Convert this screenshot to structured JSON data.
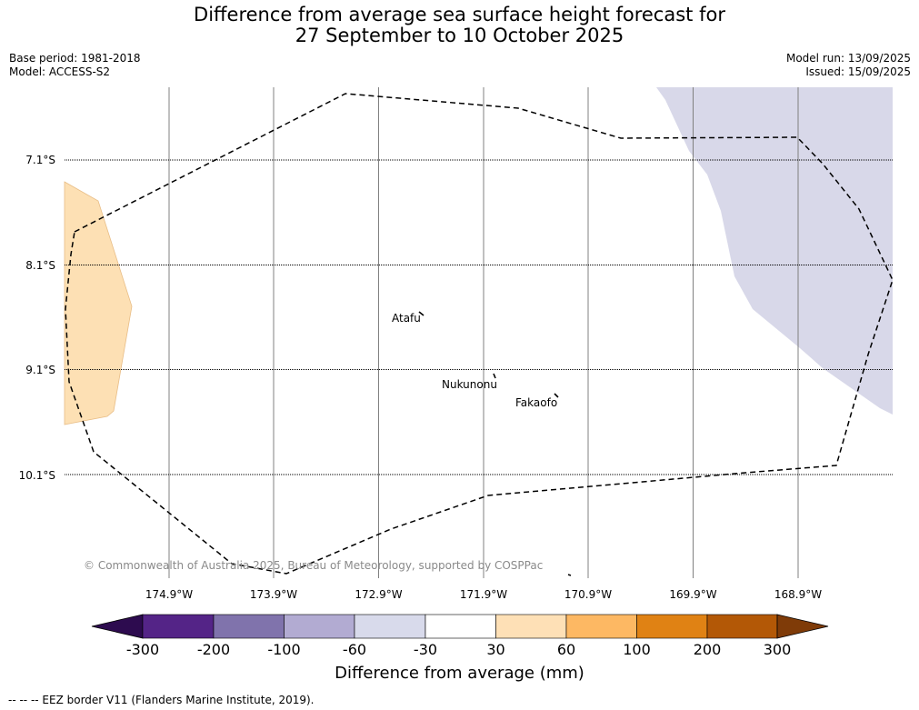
{
  "title": {
    "line1": "Difference from average sea surface height forecast for",
    "line2": "27 September to 10 October 2025"
  },
  "meta": {
    "base_period": "Base period: 1981-2018",
    "model": "Model: ACCESS-S2",
    "model_run": "Model run: 13/09/2025",
    "issued": "Issued: 15/09/2025"
  },
  "map": {
    "latitude_labels": [
      "7.1°S",
      "8.1°S",
      "9.1°S",
      "10.1°S"
    ],
    "longitude_labels": [
      "174.9°W",
      "173.9°W",
      "172.9°W",
      "171.9°W",
      "170.9°W",
      "169.9°W",
      "168.9°W"
    ],
    "places": [
      "Atafu",
      "Nukunonu",
      "Fakaofo"
    ],
    "copyright": "© Commonwealth of Australia 2025, Bureau of Meteorology, supported by COSPPac",
    "fill_colors": {
      "positive_30_60": "#fde0b4",
      "negative_60_30": "#d8d8e9"
    },
    "land_color": "#000000"
  },
  "colorbar": {
    "title": "Difference from average (mm)",
    "ticks": [
      "-300",
      "-200",
      "-100",
      "-60",
      "-30",
      "30",
      "60",
      "100",
      "200",
      "300"
    ],
    "colors": [
      "#2d0b4f",
      "#542487",
      "#8073ac",
      "#b2abd2",
      "#d8daeb",
      "#ffffff",
      "#fee0b6",
      "#fdb863",
      "#e08214",
      "#b35806",
      "#7f3b08"
    ]
  },
  "footnote": "--  --  -- EEZ border V11 (Flanders Marine Institute, 2019)."
}
